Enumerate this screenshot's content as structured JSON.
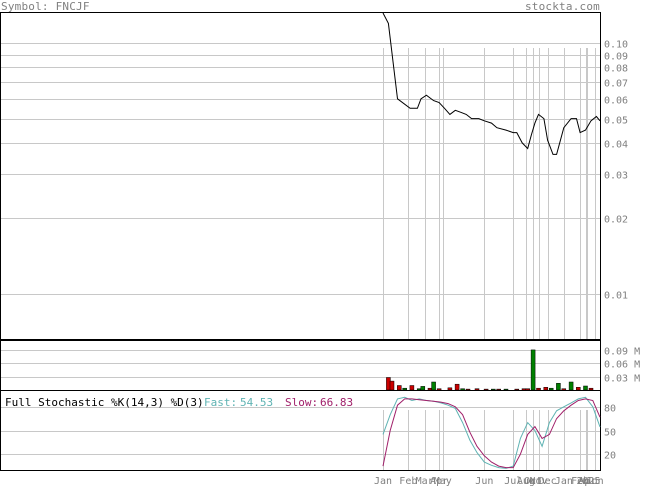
{
  "header": {
    "symbol_text": "Symbol: FNCJF",
    "site": "stockta.com"
  },
  "chart_data": [
    {
      "type": "line",
      "panel": "price",
      "scale": "log",
      "ylim": [
        0.0066,
        0.132
      ],
      "y_ticks": [
        "0.10",
        "0.09",
        "0.08",
        "0.07",
        "0.06",
        "0.05",
        "0.04",
        "0.03",
        "0.02",
        "0.01"
      ],
      "x": [
        0,
        3,
        8,
        15,
        19,
        21,
        24,
        28,
        31,
        34,
        37,
        40,
        43,
        46,
        49,
        53,
        56,
        60,
        63,
        68,
        72,
        74,
        77,
        80,
        82,
        84,
        86,
        89,
        91,
        94,
        96,
        100,
        104,
        107,
        109,
        112,
        115,
        118,
        120
      ],
      "series": [
        {
          "values": [
            0.135,
            0.12,
            0.06,
            0.055,
            0.055,
            0.06,
            0.062,
            0.059,
            0.058,
            0.055,
            0.052,
            0.054,
            0.053,
            0.052,
            0.05,
            0.05,
            0.049,
            0.048,
            0.046,
            0.045,
            0.044,
            0.044,
            0.04,
            0.038,
            0.043,
            0.048,
            0.052,
            0.05,
            0.041,
            0.036,
            0.036,
            0.046,
            0.05,
            0.05,
            0.044,
            0.045,
            0.049,
            0.051,
            0.049
          ]
        }
      ]
    },
    {
      "type": "bar",
      "panel": "volume",
      "ylim": [
        0,
        0.11
      ],
      "y_ticks": [
        "0.09 M",
        "0.06 M",
        "0.03 M"
      ],
      "x": [
        3,
        5,
        9,
        12,
        16,
        20,
        22,
        26,
        28,
        31,
        37,
        41,
        44,
        47,
        52,
        57,
        61,
        64,
        68,
        74,
        78,
        80,
        83,
        86,
        90,
        93,
        97,
        100,
        104,
        108,
        112,
        115
      ],
      "values": [
        0.028,
        0.02,
        0.01,
        0.004,
        0.01,
        0.003,
        0.008,
        0.004,
        0.018,
        0.003,
        0.005,
        0.013,
        0.003,
        0.002,
        0.003,
        0.002,
        0.002,
        0.002,
        0.002,
        0.002,
        0.003,
        0.003,
        0.09,
        0.004,
        0.006,
        0.004,
        0.015,
        0.003,
        0.018,
        0.006,
        0.009,
        0.004
      ],
      "colors": [
        "#cc0000",
        "#cc0000",
        "#cc0000",
        "#008000",
        "#cc0000",
        "#008000",
        "#008000",
        "#cc0000",
        "#008000",
        "#cc0000",
        "#cc0000",
        "#cc0000",
        "#008000",
        "#cc0000",
        "#cc0000",
        "#cc0000",
        "#008000",
        "#cc0000",
        "#008000",
        "#cc0000",
        "#cc0000",
        "#cc0000",
        "#008000",
        "#cc0000",
        "#cc0000",
        "#008000",
        "#008000",
        "#cc0000",
        "#008000",
        "#cc0000",
        "#008000",
        "#cc0000"
      ]
    },
    {
      "type": "line",
      "panel": "stochastic",
      "title": "Full Stochastic %K(14,3) %D(3)",
      "fast_label": "Fast:",
      "fast_value": "54.53",
      "slow_label": "Slow:",
      "slow_value": "66.83",
      "ylim": [
        0,
        100
      ],
      "y_ticks": [
        "80",
        "50",
        "20"
      ],
      "x": [
        0,
        4,
        8,
        12,
        16,
        20,
        24,
        28,
        32,
        36,
        40,
        44,
        48,
        52,
        56,
        60,
        64,
        68,
        72,
        76,
        80,
        84,
        88,
        92,
        96,
        100,
        104,
        108,
        112,
        116,
        120
      ],
      "series": [
        {
          "name": "Fast",
          "color": "#5fb3b3",
          "values": [
            45,
            70,
            90,
            92,
            88,
            90,
            88,
            87,
            85,
            82,
            78,
            60,
            38,
            22,
            10,
            6,
            3,
            2,
            5,
            40,
            60,
            50,
            30,
            60,
            75,
            80,
            85,
            90,
            92,
            80,
            54.53
          ]
        },
        {
          "name": "Slow",
          "color": "#a0206a",
          "values": [
            5,
            50,
            82,
            90,
            90,
            89,
            88,
            87,
            86,
            84,
            80,
            70,
            48,
            30,
            18,
            10,
            5,
            3,
            3,
            20,
            45,
            55,
            40,
            45,
            65,
            75,
            82,
            88,
            90,
            88,
            66.83
          ]
        }
      ]
    }
  ],
  "x_axis_labels": [
    "Jan",
    "Feb",
    "Mar",
    "Apr",
    "May",
    "Jun",
    "Jul",
    "Aug",
    "Oct",
    "Nov",
    "Dec",
    "Jan",
    "Feb",
    "2025",
    "Apr",
    "Jun"
  ],
  "x_axis_positions": [
    0,
    14,
    23,
    31,
    33,
    56,
    72,
    79,
    83,
    86,
    91,
    100,
    109,
    112,
    113,
    117
  ],
  "x_domain": [
    0,
    120
  ]
}
